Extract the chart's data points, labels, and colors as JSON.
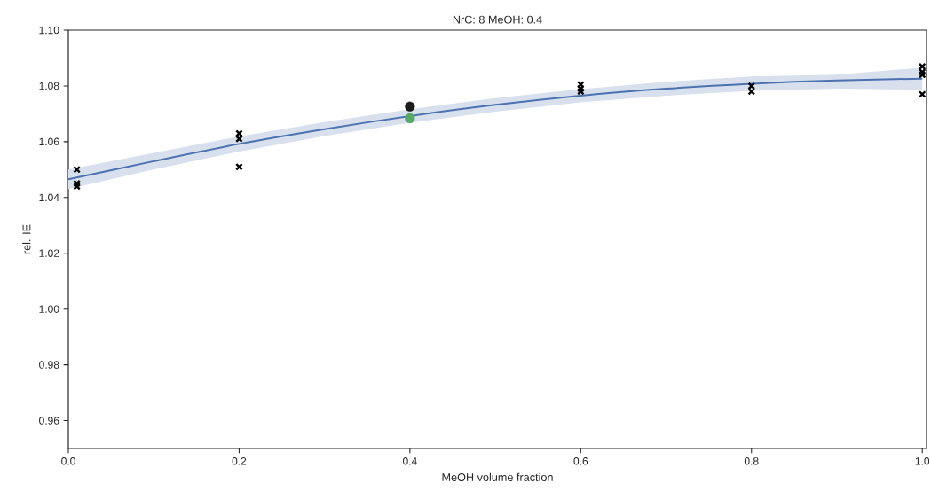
{
  "chart_data": {
    "type": "scatter",
    "title": "NrC: 8       MeOH: 0.4",
    "xlabel": "MeOH volume fraction",
    "ylabel": "rel. IE",
    "xlim": [
      0,
      1.005
    ],
    "ylim": [
      0.95,
      1.1
    ],
    "xticks": [
      {
        "value": 0,
        "label": "0.0"
      },
      0.2,
      0.4,
      0.6,
      0.8,
      {
        "value": 1,
        "label": "1.0"
      }
    ],
    "yticks": [
      0.96,
      0.98,
      {
        "value": 1.0,
        "label": "1.00"
      },
      1.02,
      1.04,
      1.06,
      1.08,
      {
        "value": 1.1,
        "label": "1.10"
      }
    ],
    "grid": false,
    "series": [
      {
        "type": "line",
        "color": "#4c72b0",
        "marker": "none",
        "line_style": "solid",
        "x": [
          0,
          0.1,
          0.2,
          0.3,
          0.4,
          0.5,
          0.6,
          0.7,
          0.8,
          0.9,
          1.0
        ],
        "values": [
          1.0465,
          1.053,
          1.0592,
          1.0645,
          1.0692,
          1.0732,
          1.0765,
          1.079,
          1.0808,
          1.082,
          1.0826
        ],
        "lower": [
          1.043,
          1.05,
          1.0565,
          1.062,
          1.0668,
          1.0708,
          1.0741,
          1.0765,
          1.0782,
          1.079,
          1.0786
        ],
        "upper": [
          1.05,
          1.056,
          1.0619,
          1.067,
          1.0716,
          1.0756,
          1.0789,
          1.0815,
          1.0834,
          1.084,
          1.0866
        ]
      },
      {
        "color": "#000000",
        "marker": "cross",
        "x": [
          0.01,
          0.01,
          0.01,
          0.2,
          0.2,
          0.2,
          0.6,
          0.6,
          0.6,
          0.8,
          0.8,
          1.0,
          1.0,
          1.0,
          1.0
        ],
        "values": [
          1.05,
          1.045,
          1.044,
          1.063,
          1.061,
          1.051,
          1.0805,
          1.079,
          1.078,
          1.08,
          1.078,
          1.087,
          1.085,
          1.084,
          1.077
        ]
      },
      {
        "color": "#1a1a1a",
        "marker": "circle",
        "x": [
          0.4
        ],
        "values": [
          1.0726
        ]
      },
      {
        "color": "#55a868",
        "marker": "circle",
        "x": [
          0.4
        ],
        "values": [
          1.0684
        ]
      }
    ]
  }
}
